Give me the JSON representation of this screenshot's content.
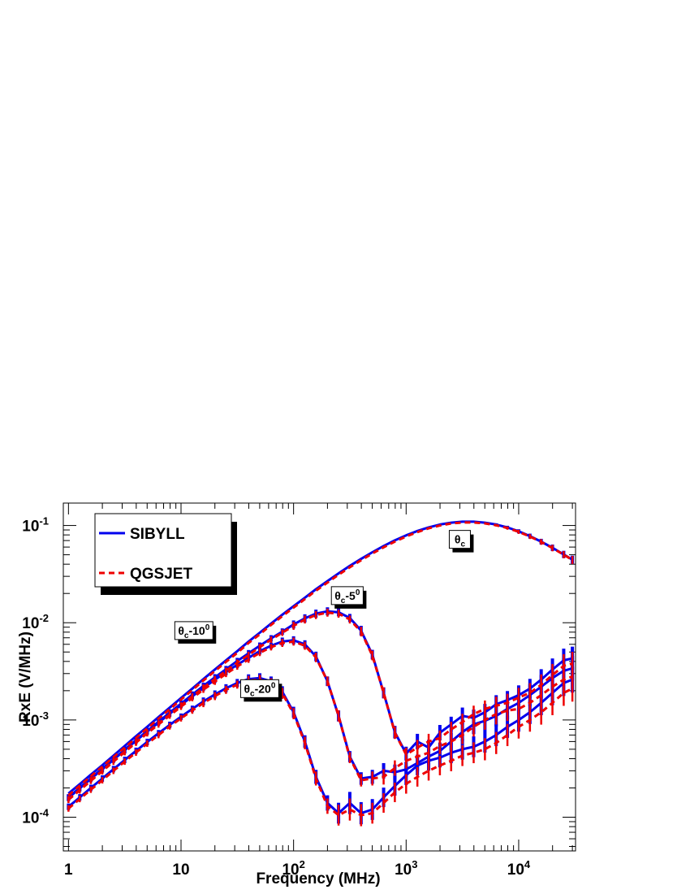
{
  "chart_data": {
    "type": "line",
    "x_scale": "log",
    "y_scale": "log",
    "xlabel": "Frequency (MHz)",
    "ylabel": "RxE (V/MHz)",
    "xlim": [
      0.9,
      32000
    ],
    "ylim": [
      4.5e-05,
      0.17
    ],
    "x_ticks": [
      {
        "value": 1,
        "base": "1",
        "exp": ""
      },
      {
        "value": 10,
        "base": "10",
        "exp": ""
      },
      {
        "value": 100,
        "base": "10",
        "exp": "2"
      },
      {
        "value": 1000,
        "base": "10",
        "exp": "3"
      },
      {
        "value": 10000,
        "base": "10",
        "exp": "4"
      }
    ],
    "y_ticks": [
      {
        "value": 0.0001,
        "base": "10",
        "exp": "-4"
      },
      {
        "value": 0.001,
        "base": "10",
        "exp": "-3"
      },
      {
        "value": 0.01,
        "base": "10",
        "exp": "-2"
      },
      {
        "value": 0.1,
        "base": "10",
        "exp": "-1"
      }
    ],
    "legend": {
      "position": "top-left",
      "entries": [
        {
          "label": "SIBYLL",
          "color": "#0000ee",
          "style": "solid"
        },
        {
          "label": "QGSJET",
          "color": "#ee0000",
          "style": "dashed"
        }
      ]
    },
    "annotations": [
      {
        "theta": "θ",
        "sub": "c",
        "rest": "",
        "sup": "",
        "x": 3000,
        "y": 0.072
      },
      {
        "theta": "θ",
        "sub": "c",
        "rest": "-5",
        "sup": "0",
        "x": 300,
        "y": 0.019
      },
      {
        "theta": "θ",
        "sub": "c",
        "rest": "-10",
        "sup": "0",
        "x": 13,
        "y": 0.0083
      },
      {
        "theta": "θ",
        "sub": "c",
        "rest": "-20",
        "sup": "0",
        "x": 50,
        "y": 0.0021
      }
    ],
    "x": [
      1,
      1.26,
      1.58,
      2,
      2.51,
      3.16,
      3.98,
      5.01,
      6.31,
      7.94,
      10,
      12.6,
      15.8,
      20,
      25.1,
      31.6,
      39.8,
      50.1,
      63.1,
      79.4,
      100,
      126,
      158,
      200,
      251,
      316,
      398,
      501,
      631,
      794,
      1000,
      1259,
      1585,
      1995,
      2512,
      3162,
      3981,
      5012,
      6310,
      7943,
      10000,
      12589,
      15849,
      19953,
      25119,
      30000
    ],
    "series": [
      {
        "name": "SIBYLL",
        "model": "SIBYLL",
        "curve": "θc",
        "color": "#0000ee",
        "values": [
          0.000175,
          0.000219,
          0.000274,
          0.000343,
          0.00043,
          0.00054,
          0.00068,
          0.00085,
          0.00107,
          0.00134,
          0.00168,
          0.0021,
          0.00263,
          0.0033,
          0.0041,
          0.0051,
          0.0064,
          0.0079,
          0.0098,
          0.0121,
          0.0148,
          0.0181,
          0.0221,
          0.0268,
          0.0322,
          0.0384,
          0.0453,
          0.0531,
          0.0615,
          0.0703,
          0.0792,
          0.0878,
          0.0956,
          0.1022,
          0.107,
          0.1095,
          0.1095,
          0.107,
          0.1023,
          0.0955,
          0.0871,
          0.0778,
          0.0682,
          0.059,
          0.0504,
          0.0445
        ],
        "errors": [
          0,
          0,
          0,
          0,
          0,
          0,
          0,
          0,
          0,
          0,
          0,
          0,
          0,
          0,
          0,
          0,
          0,
          0,
          0,
          0,
          0,
          0,
          0,
          0,
          0,
          0,
          0,
          0,
          0,
          0,
          0,
          0,
          0,
          0,
          0,
          0,
          0,
          0,
          0.03,
          0.04,
          0.05,
          0.06,
          0.07,
          0.08,
          0.09,
          0.1
        ]
      },
      {
        "name": "QGSJET",
        "model": "QGSJET",
        "curve": "θc",
        "color": "#ee0000",
        "values": [
          0.000168,
          0.000211,
          0.000264,
          0.000331,
          0.000415,
          0.00052,
          0.00065,
          0.00082,
          0.00103,
          0.00129,
          0.00162,
          0.00203,
          0.00254,
          0.00318,
          0.00396,
          0.0049,
          0.0062,
          0.0076,
          0.0095,
          0.0117,
          0.0143,
          0.0175,
          0.0214,
          0.0259,
          0.0312,
          0.0372,
          0.0439,
          0.0515,
          0.0597,
          0.0683,
          0.0771,
          0.0856,
          0.0934,
          0.1,
          0.1048,
          0.1073,
          0.1074,
          0.1051,
          0.1006,
          0.0941,
          0.086,
          0.077,
          0.0677,
          0.0586,
          0.0501,
          0.0442
        ],
        "errors": [
          0,
          0,
          0,
          0,
          0,
          0,
          0,
          0,
          0,
          0,
          0,
          0,
          0,
          0,
          0,
          0,
          0,
          0,
          0,
          0,
          0,
          0,
          0,
          0,
          0,
          0,
          0,
          0,
          0,
          0,
          0,
          0,
          0,
          0,
          0,
          0,
          0,
          0,
          0.03,
          0.04,
          0.05,
          0.06,
          0.07,
          0.08,
          0.09,
          0.1
        ]
      },
      {
        "name": "SIBYLL",
        "model": "SIBYLL",
        "curve": "θc-5°",
        "color": "#0000ee",
        "values": [
          0.00016,
          0.000201,
          0.000252,
          0.000316,
          0.000396,
          0.000495,
          0.00062,
          0.00077,
          0.00096,
          0.00119,
          0.00147,
          0.00182,
          0.00224,
          0.00274,
          0.00333,
          0.00403,
          0.00485,
          0.0058,
          0.0069,
          0.0081,
          0.0096,
          0.0111,
          0.0124,
          0.0131,
          0.0128,
          0.0112,
          0.0083,
          0.0047,
          0.0019,
          0.00075,
          0.00045,
          0.0006,
          0.00052,
          0.00074,
          0.0009,
          0.0011,
          0.00105,
          0.0012,
          0.00145,
          0.0016,
          0.0018,
          0.0021,
          0.0026,
          0.0033,
          0.0041,
          0.0043
        ],
        "errors": [
          0.08,
          0.08,
          0.08,
          0.08,
          0.08,
          0.08,
          0.08,
          0.08,
          0.08,
          0.08,
          0.08,
          0.08,
          0.08,
          0.08,
          0.08,
          0.08,
          0.08,
          0.08,
          0.08,
          0.08,
          0.1,
          0.1,
          0.1,
          0.1,
          0.1,
          0.1,
          0.12,
          0.12,
          0.14,
          0.16,
          0.18,
          0.2,
          0.2,
          0.2,
          0.2,
          0.22,
          0.22,
          0.22,
          0.24,
          0.24,
          0.26,
          0.26,
          0.28,
          0.3,
          0.32,
          0.32
        ]
      },
      {
        "name": "QGSJET",
        "model": "QGSJET",
        "curve": "θc-5°",
        "color": "#ee0000",
        "values": [
          0.000153,
          0.000192,
          0.000241,
          0.000302,
          0.000379,
          0.000474,
          0.000594,
          0.00074,
          0.00092,
          0.00114,
          0.00141,
          0.00175,
          0.00215,
          0.00263,
          0.0032,
          0.00387,
          0.00466,
          0.0056,
          0.0067,
          0.0079,
          0.0093,
          0.0108,
          0.012,
          0.0127,
          0.0124,
          0.0108,
          0.0081,
          0.0046,
          0.0019,
          0.00074,
          0.00044,
          0.00052,
          0.0006,
          0.00065,
          0.0008,
          0.00095,
          0.00115,
          0.0013,
          0.0014,
          0.0015,
          0.0017,
          0.0019,
          0.0023,
          0.0029,
          0.0036,
          0.0038
        ],
        "errors": [
          0.08,
          0.08,
          0.08,
          0.08,
          0.08,
          0.08,
          0.08,
          0.08,
          0.08,
          0.08,
          0.08,
          0.08,
          0.08,
          0.08,
          0.08,
          0.08,
          0.08,
          0.08,
          0.08,
          0.08,
          0.1,
          0.1,
          0.1,
          0.1,
          0.1,
          0.1,
          0.12,
          0.12,
          0.14,
          0.16,
          0.18,
          0.2,
          0.2,
          0.2,
          0.2,
          0.22,
          0.22,
          0.22,
          0.24,
          0.24,
          0.26,
          0.26,
          0.28,
          0.3,
          0.32,
          0.32
        ]
      },
      {
        "name": "SIBYLL",
        "model": "SIBYLL",
        "curve": "θc-10°",
        "color": "#0000ee",
        "values": [
          0.000158,
          0.000198,
          0.000248,
          0.000311,
          0.00039,
          0.000488,
          0.00061,
          0.00076,
          0.00094,
          0.00116,
          0.00143,
          0.00175,
          0.00214,
          0.00259,
          0.00311,
          0.0037,
          0.00436,
          0.0051,
          0.0058,
          0.0064,
          0.0066,
          0.006,
          0.0045,
          0.0025,
          0.0011,
          0.00042,
          0.00025,
          0.00026,
          0.0003,
          0.00029,
          0.00031,
          0.00036,
          0.00042,
          0.00048,
          0.0006,
          0.00075,
          0.0009,
          0.00098,
          0.0011,
          0.0013,
          0.0015,
          0.0018,
          0.0022,
          0.0027,
          0.0032,
          0.0034
        ],
        "errors": [
          0.08,
          0.08,
          0.08,
          0.08,
          0.08,
          0.08,
          0.08,
          0.08,
          0.08,
          0.08,
          0.08,
          0.08,
          0.08,
          0.08,
          0.08,
          0.08,
          0.08,
          0.08,
          0.08,
          0.1,
          0.1,
          0.1,
          0.12,
          0.12,
          0.14,
          0.14,
          0.16,
          0.18,
          0.2,
          0.2,
          0.2,
          0.22,
          0.22,
          0.22,
          0.24,
          0.24,
          0.26,
          0.26,
          0.28,
          0.28,
          0.3,
          0.3,
          0.32,
          0.32,
          0.34,
          0.34
        ]
      },
      {
        "name": "QGSJET",
        "model": "QGSJET",
        "curve": "θc-10°",
        "color": "#ee0000",
        "values": [
          0.000151,
          0.000189,
          0.000237,
          0.000297,
          0.000373,
          0.000467,
          0.000584,
          0.00073,
          0.0009,
          0.00111,
          0.00137,
          0.00168,
          0.00205,
          0.00248,
          0.00298,
          0.00355,
          0.00418,
          0.0049,
          0.0056,
          0.0062,
          0.0064,
          0.0058,
          0.0044,
          0.0025,
          0.0011,
          0.00041,
          0.00024,
          0.00025,
          0.00026,
          0.00032,
          0.00038,
          0.00042,
          0.00046,
          0.00054,
          0.0006,
          0.0007,
          0.00085,
          0.001,
          0.00115,
          0.00125,
          0.0013,
          0.0015,
          0.0018,
          0.0022,
          0.0026,
          0.0028
        ],
        "errors": [
          0.08,
          0.08,
          0.08,
          0.08,
          0.08,
          0.08,
          0.08,
          0.08,
          0.08,
          0.08,
          0.08,
          0.08,
          0.08,
          0.08,
          0.08,
          0.08,
          0.08,
          0.08,
          0.08,
          0.1,
          0.1,
          0.1,
          0.12,
          0.12,
          0.14,
          0.14,
          0.16,
          0.18,
          0.2,
          0.2,
          0.2,
          0.22,
          0.22,
          0.22,
          0.24,
          0.24,
          0.26,
          0.26,
          0.28,
          0.28,
          0.3,
          0.3,
          0.32,
          0.32,
          0.34,
          0.34
        ]
      },
      {
        "name": "SIBYLL",
        "model": "SIBYLL",
        "curve": "θc-20°",
        "color": "#0000ee",
        "values": [
          0.000128,
          0.00016,
          0.0002,
          0.00025,
          0.000312,
          0.000388,
          0.000481,
          0.000594,
          0.00073,
          0.00089,
          0.00108,
          0.0013,
          0.00155,
          0.00183,
          0.00212,
          0.0024,
          0.00263,
          0.0027,
          0.0025,
          0.00195,
          0.0012,
          0.0006,
          0.00026,
          0.00014,
          0.00011,
          0.00014,
          0.00011,
          0.00012,
          0.00016,
          0.00021,
          0.00027,
          0.00034,
          0.00038,
          0.00041,
          0.00046,
          0.0005,
          0.00053,
          0.0006,
          0.0007,
          0.00085,
          0.001,
          0.0012,
          0.0015,
          0.0019,
          0.0024,
          0.0026
        ],
        "errors": [
          0.08,
          0.08,
          0.08,
          0.08,
          0.08,
          0.08,
          0.08,
          0.08,
          0.08,
          0.08,
          0.08,
          0.08,
          0.1,
          0.1,
          0.1,
          0.1,
          0.12,
          0.12,
          0.12,
          0.14,
          0.14,
          0.16,
          0.18,
          0.2,
          0.28,
          0.3,
          0.3,
          0.28,
          0.26,
          0.26,
          0.26,
          0.26,
          0.26,
          0.26,
          0.28,
          0.28,
          0.28,
          0.3,
          0.3,
          0.3,
          0.32,
          0.32,
          0.34,
          0.34,
          0.36,
          0.36
        ]
      },
      {
        "name": "QGSJET",
        "model": "QGSJET",
        "curve": "θc-20°",
        "color": "#ee0000",
        "values": [
          0.000123,
          0.000154,
          0.000192,
          0.00024,
          0.0003,
          0.000373,
          0.000462,
          0.000571,
          0.0007,
          0.00086,
          0.00104,
          0.00125,
          0.00149,
          0.00176,
          0.00204,
          0.00231,
          0.00254,
          0.0026,
          0.0024,
          0.00188,
          0.00116,
          0.00058,
          0.00025,
          0.00013,
          0.000105,
          0.00012,
          0.000105,
          0.00011,
          0.00014,
          0.00018,
          0.00022,
          0.00026,
          0.0003,
          0.00034,
          0.00038,
          0.00043,
          0.00046,
          0.0005,
          0.00058,
          0.0007,
          0.00085,
          0.001,
          0.0012,
          0.0015,
          0.0019,
          0.0021
        ],
        "errors": [
          0.08,
          0.08,
          0.08,
          0.08,
          0.08,
          0.08,
          0.08,
          0.08,
          0.08,
          0.08,
          0.08,
          0.08,
          0.1,
          0.1,
          0.1,
          0.1,
          0.12,
          0.12,
          0.12,
          0.14,
          0.14,
          0.16,
          0.18,
          0.2,
          0.28,
          0.3,
          0.3,
          0.28,
          0.26,
          0.26,
          0.26,
          0.26,
          0.26,
          0.26,
          0.28,
          0.28,
          0.28,
          0.3,
          0.3,
          0.3,
          0.32,
          0.32,
          0.34,
          0.34,
          0.36,
          0.36
        ]
      }
    ]
  }
}
